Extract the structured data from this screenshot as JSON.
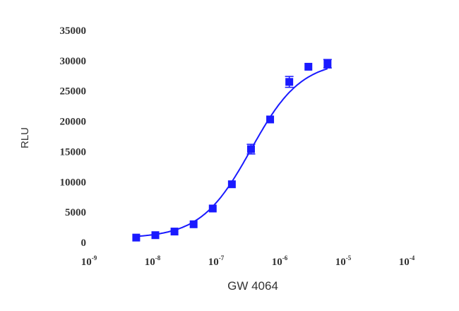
{
  "chart_data": {
    "type": "scatter",
    "xlabel": "GW 4064",
    "ylabel": "RLU",
    "x_scale": "log",
    "xlim": [
      1e-09,
      0.0001
    ],
    "ylim": [
      0,
      35000
    ],
    "x_ticks": [
      {
        "base": "10",
        "exp": "-9",
        "value": 1e-09
      },
      {
        "base": "10",
        "exp": "-8",
        "value": 1e-08
      },
      {
        "base": "10",
        "exp": "-7",
        "value": 1e-07
      },
      {
        "base": "10",
        "exp": "-6",
        "value": 1e-06
      },
      {
        "base": "10",
        "exp": "-5",
        "value": 1e-05
      },
      {
        "base": "10",
        "exp": "-4",
        "value": 0.0001
      }
    ],
    "y_ticks": [
      "0",
      "5000",
      "10000",
      "15000",
      "20000",
      "25000",
      "30000",
      "35000"
    ],
    "y_tick_values": [
      0,
      5000,
      10000,
      15000,
      20000,
      25000,
      30000,
      35000
    ],
    "series": [
      {
        "x": [
          5e-09,
          1e-08,
          2e-08,
          4e-08,
          8e-08,
          1.6e-07,
          3.2e-07,
          6.4e-07,
          1.28e-06,
          2.56e-06,
          5.12e-06
        ],
        "y": [
          800,
          1200,
          1800,
          3000,
          5600,
          9600,
          15400,
          20300,
          26500,
          29000,
          29500
        ],
        "error": [
          0,
          0,
          0,
          0,
          0,
          0,
          800,
          0,
          900,
          0,
          700
        ]
      }
    ],
    "fit": {
      "bottom": 700,
      "top": 30000,
      "ec50": 3.2e-07,
      "hill": 1.1
    },
    "color": "#1a1aff",
    "grid": false,
    "legend": "none"
  }
}
